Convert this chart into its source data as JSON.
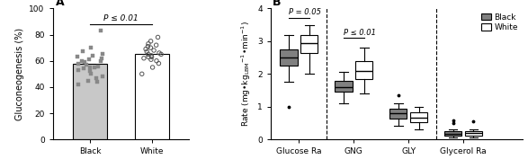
{
  "panel_a": {
    "black_bar_height": 57.5,
    "white_bar_height": 65.5,
    "black_dots": [
      42,
      44,
      45,
      47,
      48,
      50,
      52,
      53,
      54,
      55,
      55,
      56,
      57,
      58,
      59,
      60,
      60,
      61,
      62,
      63,
      64,
      65,
      67,
      70,
      83
    ],
    "white_dots": [
      50,
      55,
      58,
      60,
      61,
      62,
      63,
      63,
      64,
      65,
      65,
      66,
      67,
      68,
      69,
      70,
      71,
      72,
      73,
      75,
      78
    ],
    "ylabel": "Gluconeogenesis (%)",
    "xlabel_black": "Black",
    "xlabel_white": "White",
    "ylim": [
      0,
      100
    ],
    "yticks": [
      0,
      20,
      40,
      60,
      80,
      100
    ],
    "pvalue_label": "P ≤ 0.01",
    "bar_color_black": "#c8c8c8",
    "bar_color_white": "#ffffff",
    "bar_edge_color": "#000000",
    "dot_color_black": "#888888",
    "dot_size_black": 8,
    "dot_size_white": 10
  },
  "panel_b": {
    "categories": [
      "Glucose Ra",
      "GNG",
      "GLY",
      "Glycerol Ra"
    ],
    "ylabel": "Rate (mg•kg_LBM⁻¹•min⁻¹)",
    "ylim": [
      0,
      4
    ],
    "yticks": [
      0,
      1,
      2,
      3,
      4
    ],
    "black_boxes": {
      "Glucose Ra": {
        "q1": 2.25,
        "median": 2.5,
        "q3": 2.75,
        "whislo": 1.75,
        "whishi": 3.2,
        "fliers": [
          1.0
        ]
      },
      "GNG": {
        "q1": 1.45,
        "median": 1.6,
        "q3": 1.8,
        "whislo": 1.1,
        "whishi": 2.05,
        "fliers": []
      },
      "GLY": {
        "q1": 0.65,
        "median": 0.8,
        "q3": 0.95,
        "whislo": 0.42,
        "whishi": 1.1,
        "fliers": [
          1.35
        ]
      },
      "Glycerol Ra": {
        "q1": 0.12,
        "median": 0.18,
        "q3": 0.24,
        "whislo": 0.06,
        "whishi": 0.32,
        "fliers": [
          0.5,
          0.58
        ]
      }
    },
    "white_boxes": {
      "Glucose Ra": {
        "q1": 2.65,
        "median": 2.95,
        "q3": 3.2,
        "whislo": 2.0,
        "whishi": 3.5,
        "fliers": []
      },
      "GNG": {
        "q1": 1.85,
        "median": 2.1,
        "q3": 2.4,
        "whislo": 1.4,
        "whishi": 2.8,
        "fliers": []
      },
      "GLY": {
        "q1": 0.52,
        "median": 0.67,
        "q3": 0.82,
        "whislo": 0.3,
        "whishi": 1.0,
        "fliers": []
      },
      "Glycerol Ra": {
        "q1": 0.12,
        "median": 0.19,
        "q3": 0.25,
        "whislo": 0.06,
        "whishi": 0.32,
        "fliers": [
          0.55
        ]
      }
    },
    "pvalues": {
      "Glucose Ra": "P = 0.05",
      "GNG": "P ≤ 0.01"
    },
    "black_color": "#808080",
    "white_color": "#ffffff",
    "edge_color": "#000000",
    "dashed_after": [
      "Glucose Ra",
      "GLY"
    ],
    "legend_black": "Black",
    "legend_white": "White"
  }
}
